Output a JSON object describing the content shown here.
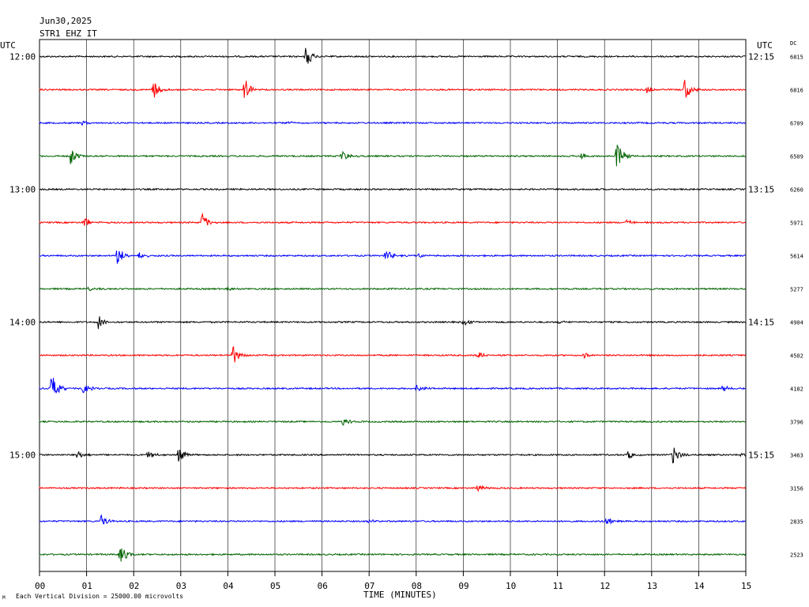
{
  "header": {
    "date": "Jun30,2025",
    "station": "STR1 EHZ IT"
  },
  "axis_labels": {
    "left_utc": "UTC",
    "right_utc": "UTC",
    "dc": "DC",
    "xlabel": "TIME (MINUTES)",
    "footer": "Each Vertical Division = 25000.00 microvolts"
  },
  "colors": {
    "black": "#000000",
    "red": "#ff0000",
    "blue": "#0000ff",
    "green": "#006400",
    "grid": "#000000"
  },
  "chart_data": {
    "type": "line",
    "title": "STR1 EHZ IT",
    "xlabel": "TIME (MINUTES)",
    "xlim": [
      0,
      15
    ],
    "x_ticks": [
      "00",
      "01",
      "02",
      "03",
      "04",
      "05",
      "06",
      "07",
      "08",
      "09",
      "10",
      "11",
      "12",
      "13",
      "14",
      "15"
    ],
    "series": [
      {
        "left_label": "12:00",
        "right_label": "12:15",
        "dc": "6815",
        "color": "black",
        "events": [
          {
            "t": 5.65,
            "amp": 1.0
          }
        ]
      },
      {
        "left_label": "",
        "right_label": "",
        "dc": "6816",
        "color": "red",
        "events": [
          {
            "t": 2.4,
            "amp": 1.0
          },
          {
            "t": 4.35,
            "amp": 1.0
          },
          {
            "t": 12.9,
            "amp": 0.3
          },
          {
            "t": 13.7,
            "amp": 1.1
          }
        ]
      },
      {
        "left_label": "",
        "right_label": "",
        "dc": "6709",
        "color": "blue",
        "events": [
          {
            "t": 0.9,
            "amp": 0.25
          },
          {
            "t": 5.3,
            "amp": 0.2
          }
        ]
      },
      {
        "left_label": "",
        "right_label": "",
        "dc": "6509",
        "color": "green",
        "events": [
          {
            "t": 0.65,
            "amp": 1.0
          },
          {
            "t": 6.4,
            "amp": 0.6
          },
          {
            "t": 11.5,
            "amp": 0.3
          },
          {
            "t": 12.25,
            "amp": 1.3
          }
        ]
      },
      {
        "left_label": "13:00",
        "right_label": "13:15",
        "dc": "6260",
        "color": "black",
        "events": []
      },
      {
        "left_label": "",
        "right_label": "",
        "dc": "5971",
        "color": "red",
        "events": [
          {
            "t": 0.95,
            "amp": 0.5
          },
          {
            "t": 3.45,
            "amp": 0.9
          },
          {
            "t": 12.45,
            "amp": 0.3
          }
        ]
      },
      {
        "left_label": "",
        "right_label": "",
        "dc": "5614",
        "color": "blue",
        "events": [
          {
            "t": 1.65,
            "amp": 0.9
          },
          {
            "t": 2.1,
            "amp": 0.4
          },
          {
            "t": 7.35,
            "amp": 0.6
          },
          {
            "t": 8.05,
            "amp": 0.2
          }
        ]
      },
      {
        "left_label": "",
        "right_label": "",
        "dc": "5277",
        "color": "green",
        "events": [
          {
            "t": 1.05,
            "amp": 0.2
          },
          {
            "t": 4.0,
            "amp": 0.15
          }
        ]
      },
      {
        "left_label": "14:00",
        "right_label": "14:15",
        "dc": "4904",
        "color": "black",
        "events": [
          {
            "t": 1.25,
            "amp": 0.6
          },
          {
            "t": 9.0,
            "amp": 0.4
          },
          {
            "t": 11.0,
            "amp": 0.15
          }
        ]
      },
      {
        "left_label": "",
        "right_label": "",
        "dc": "4502",
        "color": "red",
        "events": [
          {
            "t": 4.1,
            "amp": 0.9
          },
          {
            "t": 9.3,
            "amp": 0.4
          },
          {
            "t": 11.55,
            "amp": 0.3
          }
        ]
      },
      {
        "left_label": "",
        "right_label": "",
        "dc": "4182",
        "color": "blue",
        "events": [
          {
            "t": 0.25,
            "amp": 1.3
          },
          {
            "t": 0.9,
            "amp": 0.6
          },
          {
            "t": 8.0,
            "amp": 0.4
          },
          {
            "t": 14.5,
            "amp": 0.3
          }
        ]
      },
      {
        "left_label": "",
        "right_label": "",
        "dc": "3796",
        "color": "green",
        "events": [
          {
            "t": 6.45,
            "amp": 0.4
          }
        ]
      },
      {
        "left_label": "15:00",
        "right_label": "15:15",
        "dc": "3463",
        "color": "black",
        "events": [
          {
            "t": 0.8,
            "amp": 0.4
          },
          {
            "t": 2.3,
            "amp": 0.4
          },
          {
            "t": 2.95,
            "amp": 0.7
          },
          {
            "t": 12.5,
            "amp": 0.4
          },
          {
            "t": 13.45,
            "amp": 0.9
          },
          {
            "t": 14.9,
            "amp": 0.2
          }
        ]
      },
      {
        "left_label": "",
        "right_label": "",
        "dc": "3156",
        "color": "red",
        "events": [
          {
            "t": 9.3,
            "amp": 0.4
          }
        ]
      },
      {
        "left_label": "",
        "right_label": "",
        "dc": "2835",
        "color": "blue",
        "events": [
          {
            "t": 1.3,
            "amp": 0.6
          },
          {
            "t": 7.0,
            "amp": 0.2
          },
          {
            "t": 12.05,
            "amp": 0.5
          }
        ]
      },
      {
        "left_label": "",
        "right_label": "",
        "dc": "2523",
        "color": "green",
        "events": [
          {
            "t": 1.7,
            "amp": 1.0
          }
        ]
      }
    ]
  }
}
